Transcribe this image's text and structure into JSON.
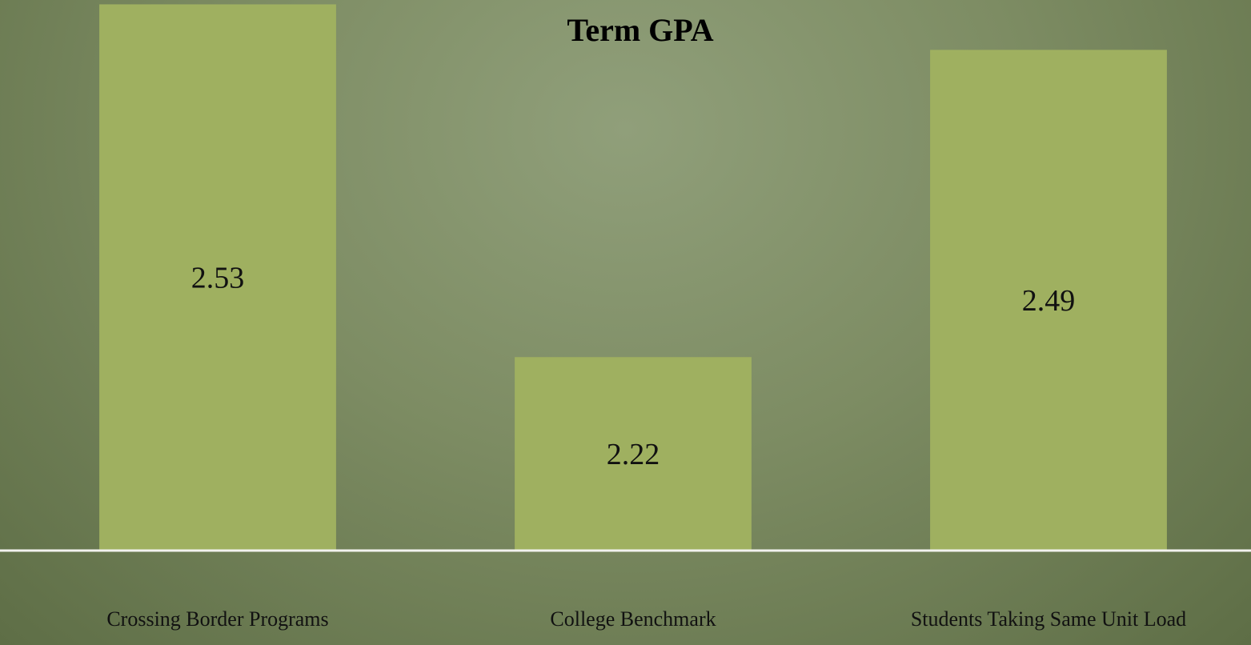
{
  "chart_data": {
    "type": "bar",
    "title": "Term GPA",
    "categories": [
      "Crossing Border Programs",
      "College Benchmark",
      "Students Taking Same Unit Load"
    ],
    "values": [
      2.53,
      2.22,
      2.49
    ],
    "color": "#9fb060",
    "ylim": [
      2.05,
      2.55
    ],
    "grid": false
  }
}
